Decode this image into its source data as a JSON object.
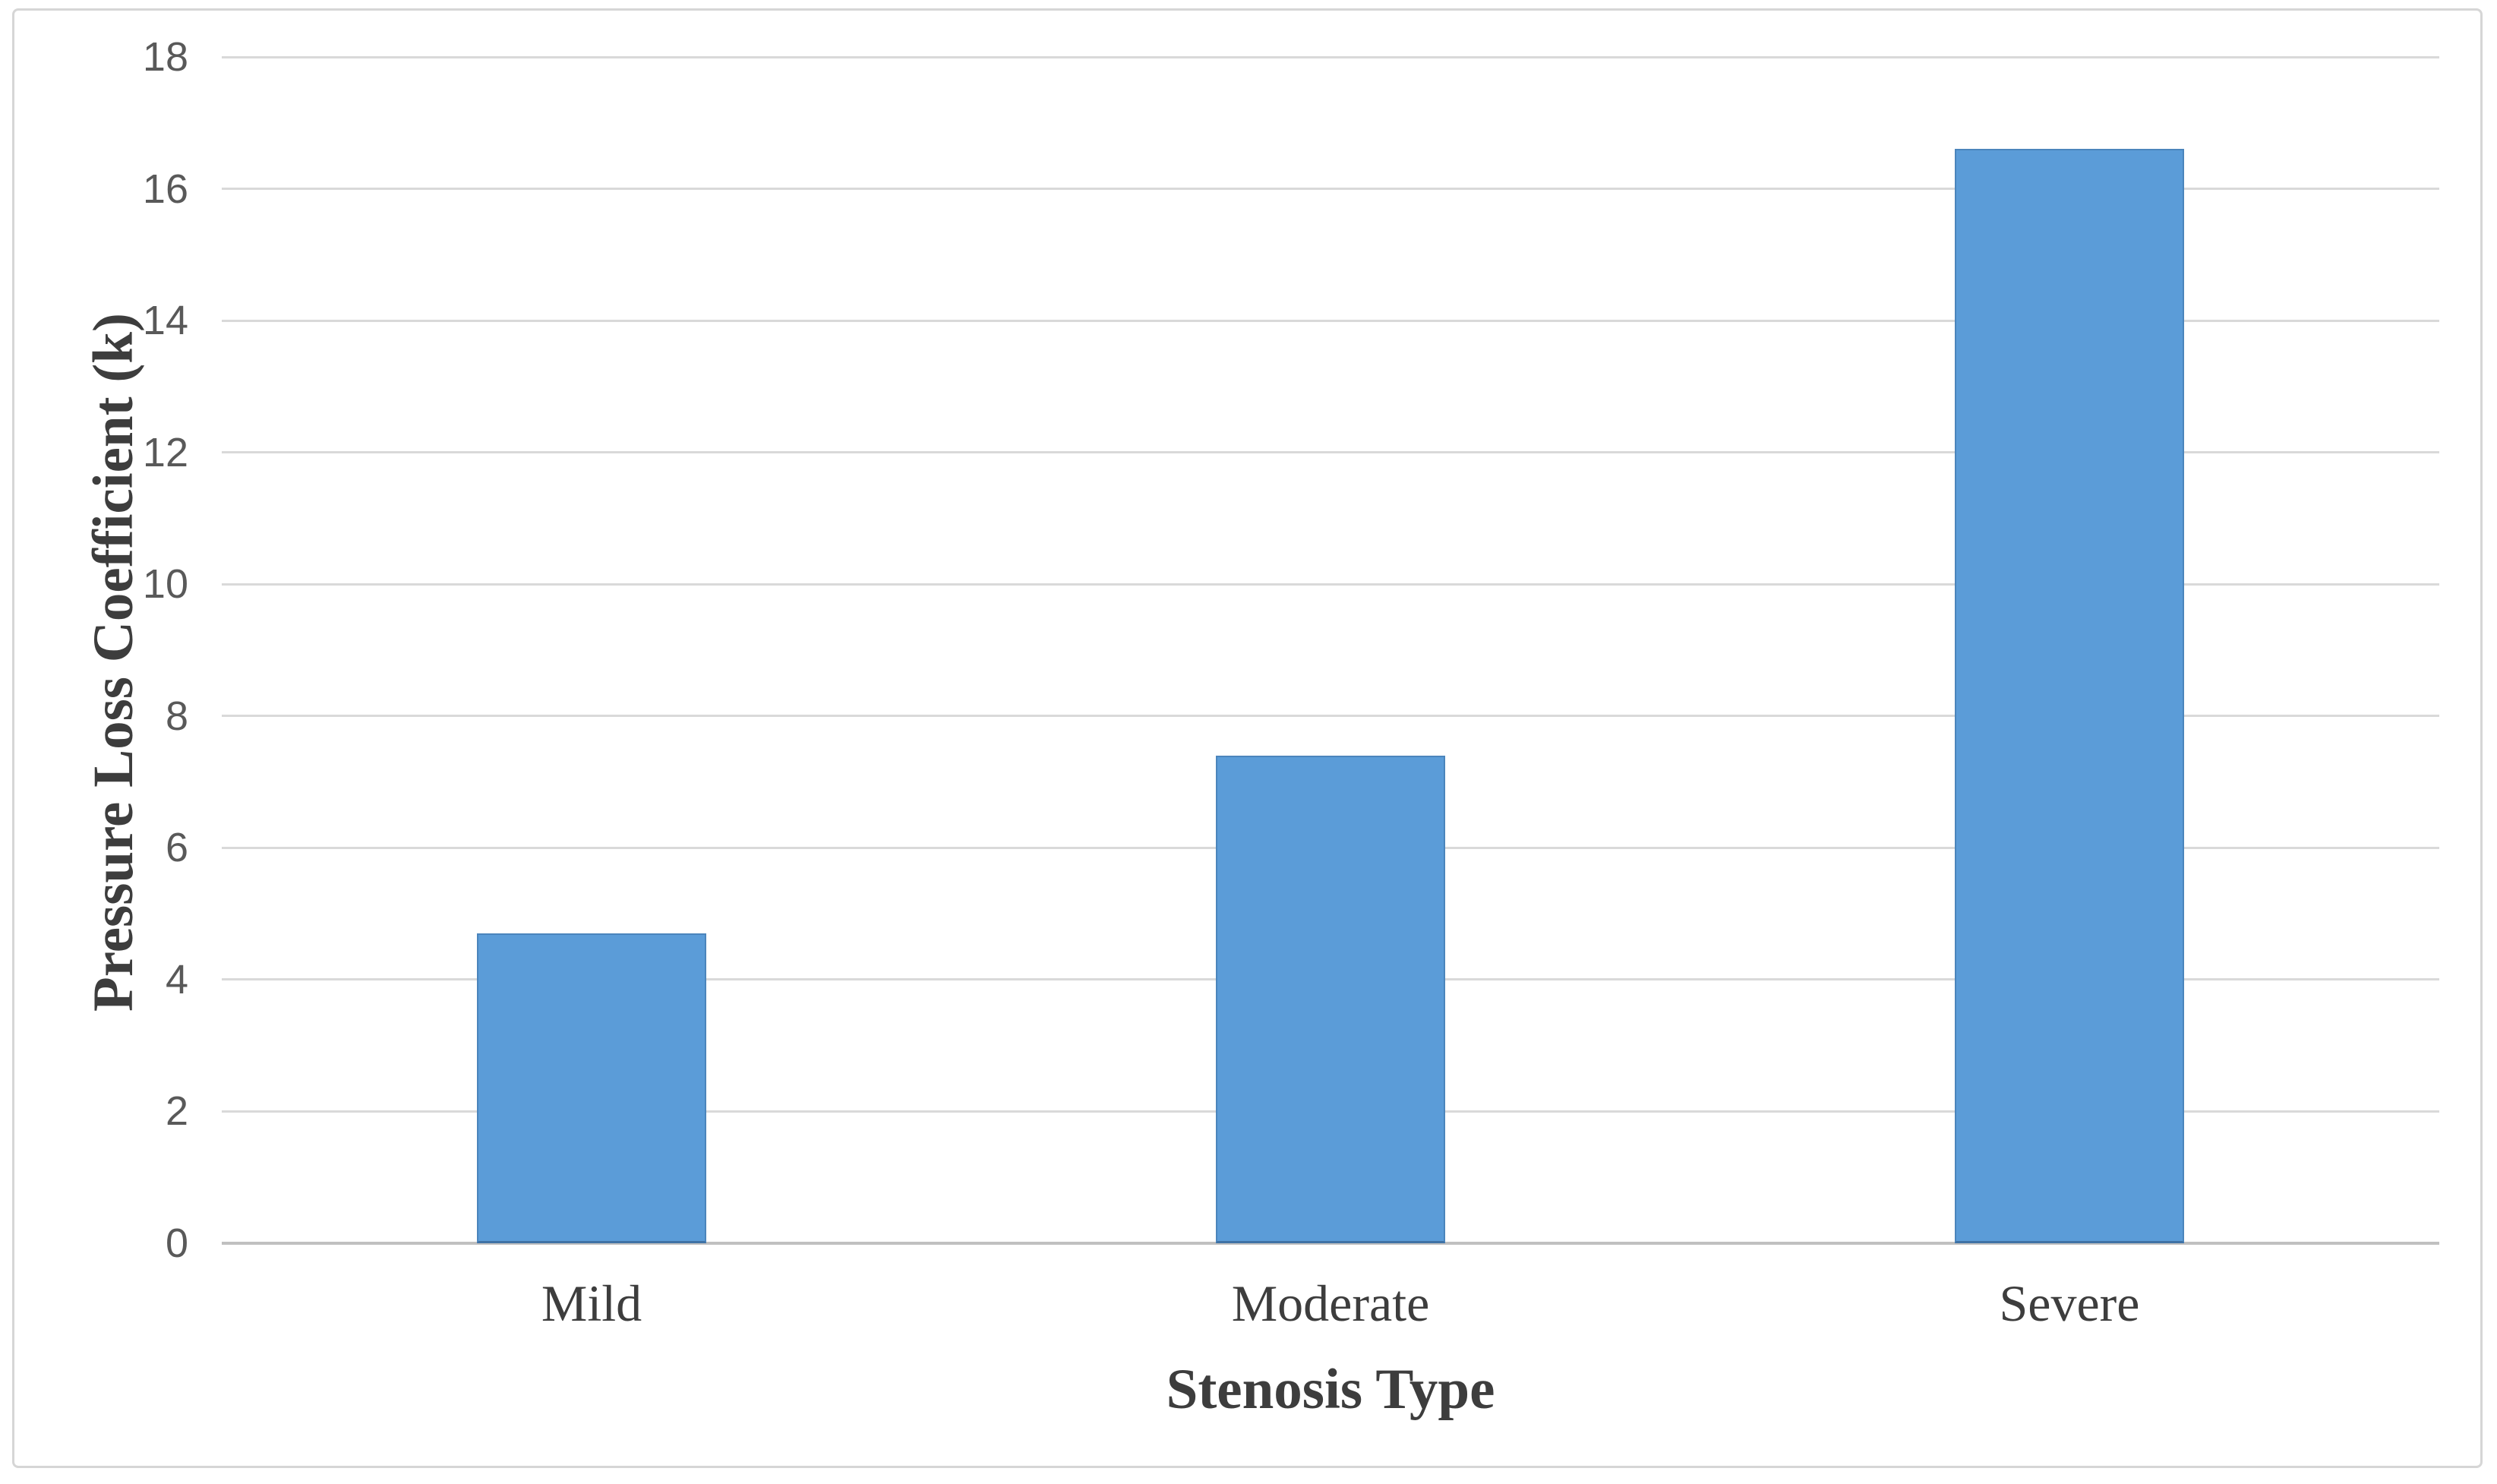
{
  "chart_data": {
    "type": "bar",
    "title": "",
    "categories": [
      "Mild",
      "Moderate",
      "Severe"
    ],
    "values": [
      4.7,
      7.4,
      16.6
    ],
    "xlabel": "Stenosis Type",
    "ylabel": "Pressure Loss Coefficient (k)",
    "ylim": [
      0,
      18
    ],
    "yticks": [
      0,
      2,
      4,
      6,
      8,
      10,
      12,
      14,
      16,
      18
    ],
    "grid": "horizontal-only",
    "legend": "none",
    "bar_width_ratio": 0.31,
    "colors": {
      "bar_fill": "#5b9cd8",
      "gridline": "#d9d9d9",
      "axis_line": "#c0c0c0",
      "tick_label_text": "#595959",
      "title_text": "#3d3d3d",
      "frame_border": "#d6d6d6",
      "background": "#ffffff"
    }
  }
}
